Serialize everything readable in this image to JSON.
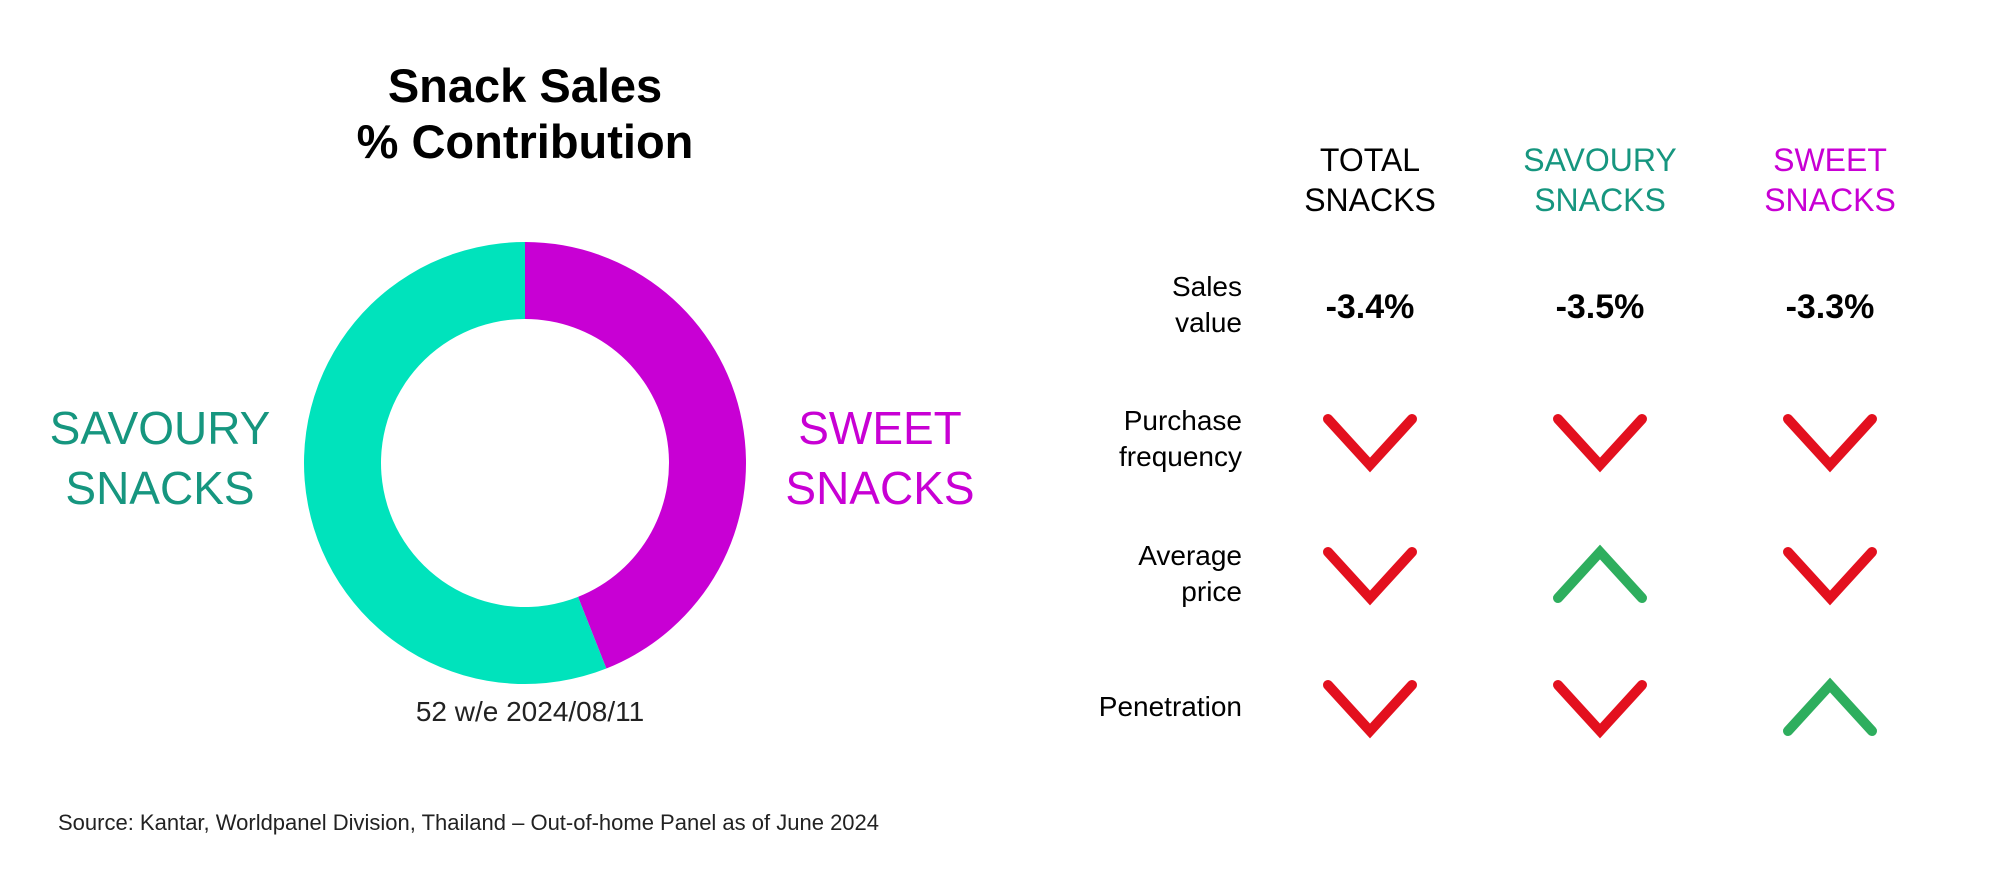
{
  "chart_data": [
    {
      "type": "pie",
      "title": [
        "Snack Sales",
        "% Contribution"
      ],
      "subtitle": "52 w/e 2024/08/11",
      "style": "donut",
      "slices": [
        {
          "name": [
            "SWEET",
            "SNACKS"
          ],
          "value": 44,
          "color": "#c800d4"
        },
        {
          "name": [
            "SAVOURY",
            "SNACKS"
          ],
          "value": 56,
          "color": "#00e3bc"
        }
      ],
      "legend": "side labels"
    },
    {
      "type": "table",
      "columns": [
        {
          "label": [
            "TOTAL",
            "SNACKS"
          ],
          "color": "#000000"
        },
        {
          "label": [
            "SAVOURY",
            "SNACKS"
          ],
          "color": "#16967f"
        },
        {
          "label": [
            "SWEET",
            "SNACKS"
          ],
          "color": "#c800d4"
        }
      ],
      "rows": [
        {
          "label": [
            "Sales",
            "value"
          ],
          "cells": [
            "-3.4%",
            "-3.5%",
            "-3.3%"
          ]
        },
        {
          "label": [
            "Purchase",
            "frequency"
          ],
          "cells": [
            "down",
            "down",
            "down"
          ]
        },
        {
          "label": [
            "Average",
            "price"
          ],
          "cells": [
            "down",
            "up",
            "down"
          ]
        },
        {
          "label": [
            "Penetration"
          ],
          "cells": [
            "down",
            "down",
            "up"
          ]
        }
      ],
      "arrow_colors": {
        "down": "#e3101e",
        "up": "#2eae5e"
      }
    }
  ],
  "source": "Source: Kantar, Worldpanel Division, Thailand – Out-of-home Panel as of June 2024",
  "colors": {
    "savoury_text": "#16967f",
    "sweet_text": "#c800d4"
  }
}
